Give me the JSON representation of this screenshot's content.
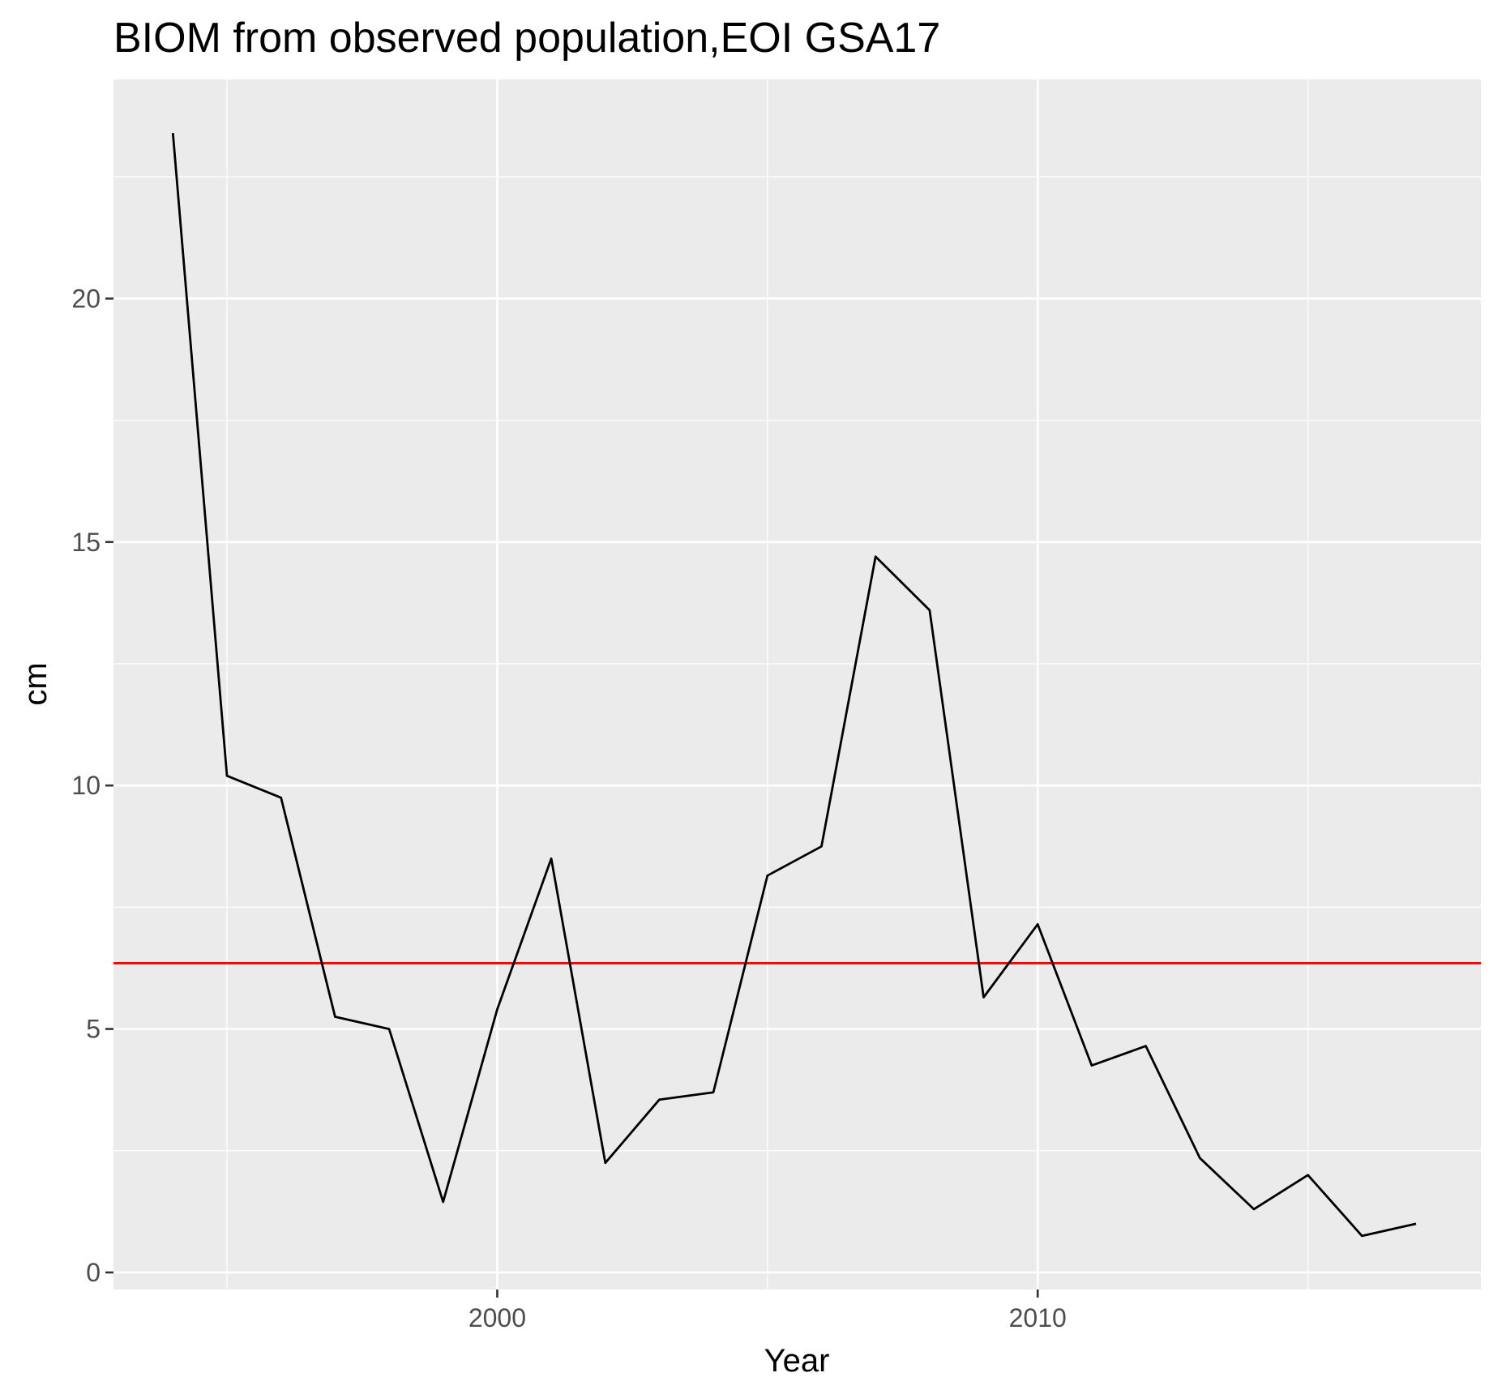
{
  "chart_data": {
    "type": "line",
    "title": "BIOM from observed population,EOI GSA17",
    "xlabel": "Year",
    "ylabel": "cm",
    "xlim": [
      1992.9,
      2018.2
    ],
    "ylim": [
      -0.35,
      24.5
    ],
    "x_ticks": [
      2000,
      2010
    ],
    "x_tick_labels": [
      "2000",
      "2010"
    ],
    "x_minor_breaks": [
      1995,
      2005,
      2015
    ],
    "y_ticks": [
      0,
      5,
      10,
      15,
      20
    ],
    "y_tick_labels": [
      "0",
      "5",
      "10",
      "15",
      "20"
    ],
    "y_minor_breaks": [
      2.5,
      7.5,
      12.5,
      17.5,
      22.5
    ],
    "grid": true,
    "panel_background": "#ebebeb",
    "grid_color": "#ffffff",
    "series": [
      {
        "color": "#000000",
        "x": [
          1994,
          1995,
          1996,
          1997,
          1998,
          1999,
          2000,
          2001,
          2002,
          2003,
          2004,
          2005,
          2006,
          2007,
          2008,
          2009,
          2010,
          2011,
          2012,
          2013,
          2014,
          2015,
          2016,
          2017
        ],
        "values": [
          23.4,
          10.2,
          9.75,
          5.25,
          5.0,
          1.45,
          5.4,
          8.5,
          2.25,
          3.55,
          3.7,
          8.15,
          8.75,
          14.7,
          13.6,
          5.65,
          7.15,
          4.25,
          4.65,
          2.35,
          1.3,
          2.0,
          0.75,
          1.0
        ]
      }
    ],
    "reference_lines": [
      {
        "type": "horizontal",
        "value": 6.35,
        "color": "#ff0000"
      }
    ]
  }
}
